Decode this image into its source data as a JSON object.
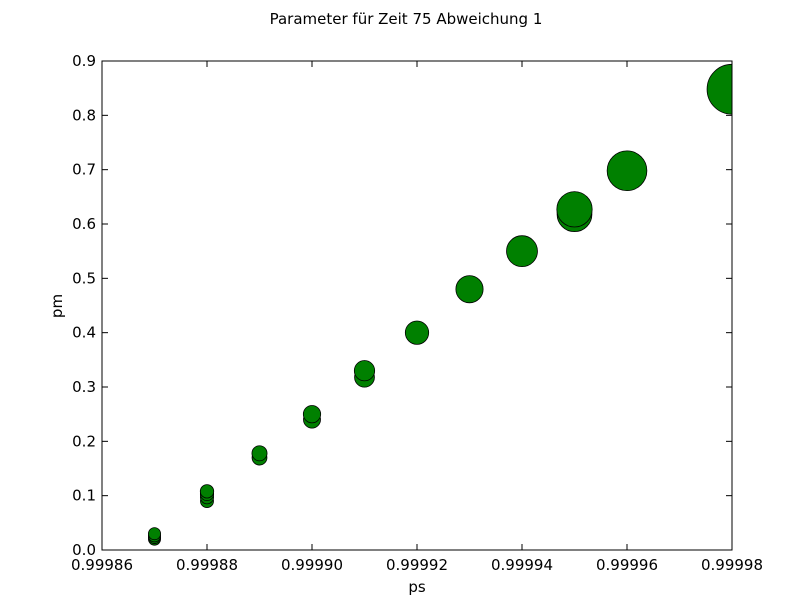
{
  "chart_data": {
    "type": "scatter",
    "title": "Parameter für Zeit 75 Abweichung 1",
    "xlabel": "ps",
    "ylabel": "pm",
    "xlim": [
      0.99986,
      0.99998
    ],
    "ylim": [
      0.0,
      0.9
    ],
    "xticks": [
      "0.99986",
      "0.99988",
      "0.99990",
      "0.99992",
      "0.99994",
      "0.99996",
      "0.99998"
    ],
    "yticks": [
      "0.0",
      "0.1",
      "0.2",
      "0.3",
      "0.4",
      "0.5",
      "0.6",
      "0.7",
      "0.8",
      "0.9"
    ],
    "grid": false,
    "marker_color": "#008000",
    "edge_color": "#000000",
    "series": [
      {
        "x": [
          0.99987,
          0.99987,
          0.99987,
          0.99987,
          0.99988,
          0.99988,
          0.99988,
          0.99988,
          0.99989,
          0.99989,
          0.9999,
          0.9999,
          0.99991,
          0.99991,
          0.99992,
          0.99993,
          0.99994,
          0.99995,
          0.99995,
          0.99996,
          0.99998
        ],
        "y": [
          0.02,
          0.023,
          0.026,
          0.03,
          0.09,
          0.097,
          0.103,
          0.108,
          0.17,
          0.178,
          0.24,
          0.25,
          0.318,
          0.33,
          0.4,
          0.48,
          0.55,
          0.618,
          0.627,
          0.698,
          0.848
        ]
      }
    ]
  }
}
